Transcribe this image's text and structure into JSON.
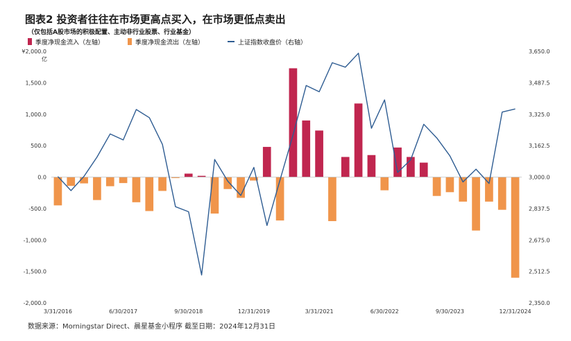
{
  "header": {
    "title": "图表2 投资者往往在市场更高点买入，在市场更低点卖出",
    "subtitle": "（仅包括A股市场的积极配置、主动非行业股票、行业基金）",
    "unit": "亿"
  },
  "source": "数据来源：Morningstar Direct、晨星基金小程序 截至日期：2024年12月31日",
  "colors": {
    "inflow": "#C0264F",
    "outflow": "#F0954B",
    "index_line": "#2E5C92"
  },
  "chart_data": {
    "type": "bar",
    "legend": {
      "placement": "top-left",
      "entries": [
        "季度净现金流入（左轴）",
        "季度净现金流出（左轴）",
        "上证指数收盘价（右轴）"
      ]
    },
    "x_tick_labels": [
      "3/31/2016",
      "6/30/2017",
      "9/30/2018",
      "12/31/2019",
      "3/31/2021",
      "6/30/2022",
      "9/30/2023",
      "12/31/2024"
    ],
    "x_tick_quarter_index": [
      0,
      5,
      10,
      15,
      20,
      25,
      30,
      35
    ],
    "quarters": [
      "3/31/2016",
      "6/30/2016",
      "9/30/2016",
      "12/31/2016",
      "3/31/2017",
      "6/30/2017",
      "9/30/2017",
      "12/31/2017",
      "3/31/2018",
      "6/30/2018",
      "9/30/2018",
      "12/31/2018",
      "3/31/2019",
      "6/30/2019",
      "9/30/2019",
      "12/31/2019",
      "3/31/2020",
      "6/30/2020",
      "9/30/2020",
      "12/31/2020",
      "3/31/2021",
      "6/30/2021",
      "9/30/2021",
      "12/31/2021",
      "3/31/2022",
      "6/30/2022",
      "9/30/2022",
      "12/31/2022",
      "3/31/2023",
      "6/30/2023",
      "9/30/2023",
      "12/31/2023",
      "3/31/2024",
      "6/30/2024",
      "9/30/2024",
      "12/31/2024"
    ],
    "left_axis": {
      "ylim": [
        -2000,
        2000
      ],
      "tick_labels": [
        "¥2,000.0",
        "1,500.0",
        "1,000.0",
        "500.0",
        "0.0",
        "-500.0",
        "-1,000.0",
        "-1,500.0",
        "-2,000.0"
      ],
      "tick_values": [
        2000,
        1500,
        1000,
        500,
        0,
        -500,
        -1000,
        -1500,
        -2000
      ]
    },
    "right_axis": {
      "ylim": [
        2350,
        3650
      ],
      "tick_labels": [
        "3,650.0",
        "3,487.5",
        "3,325.0",
        "3,162.5",
        "3,000.0",
        "2,837.5",
        "2,675.0",
        "2,512.5",
        "2,350.0"
      ],
      "tick_values": [
        3650,
        3487.5,
        3325,
        3162.5,
        3000,
        2837.5,
        2675,
        2512.5,
        2350
      ]
    },
    "series": [
      {
        "name": "季度净现金流（左轴）",
        "axis": "left",
        "values": [
          -450,
          -140,
          -100,
          -365,
          -145,
          -95,
          -400,
          -540,
          -220,
          -15,
          55,
          20,
          -580,
          -190,
          -330,
          -55,
          480,
          -690,
          1730,
          900,
          740,
          -700,
          320,
          1170,
          350,
          -210,
          470,
          320,
          230,
          -300,
          -240,
          -390,
          -850,
          -390,
          -520,
          -1600
        ]
      },
      {
        "name": "上证指数收盘价（右轴）",
        "axis": "right",
        "values": [
          3003,
          2930,
          3004,
          3104,
          3223,
          3192,
          3349,
          3307,
          3169,
          2847,
          2821,
          2494,
          3091,
          2979,
          2905,
          3050,
          2750,
          2985,
          3218,
          3473,
          3441,
          3591,
          3568,
          3640,
          3252,
          3399,
          3024,
          3089,
          3273,
          3202,
          3110,
          2975,
          3041,
          2967,
          3336,
          3352
        ]
      }
    ]
  }
}
